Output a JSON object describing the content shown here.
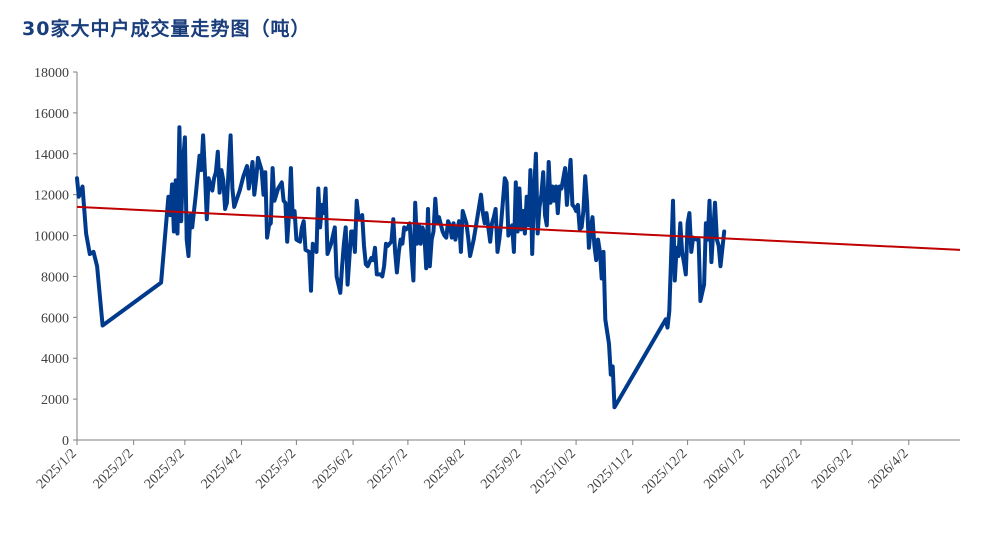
{
  "chart_data": {
    "type": "line",
    "title": "30家大中户成交量走势图（吨）",
    "xlabel": "",
    "ylabel": "",
    "ylim": [
      0,
      18000
    ],
    "yticks": [
      0,
      2000,
      4000,
      6000,
      8000,
      10000,
      12000,
      14000,
      16000,
      18000
    ],
    "yticklabels": [
      "0",
      "2000",
      "4000",
      "6000",
      "8000",
      "10000",
      "12000",
      "14000",
      "16000",
      "18000"
    ],
    "xlim": [
      "2025-01-02",
      "2026-04-30"
    ],
    "xticks": [
      "2025-01-02",
      "2025-02-02",
      "2025-03-02",
      "2025-04-02",
      "2025-05-02",
      "2025-06-02",
      "2025-07-02",
      "2025-08-02",
      "2025-09-02",
      "2025-10-02",
      "2025-11-02",
      "2025-12-02",
      "2026-01-02",
      "2026-02-02",
      "2026-03-02",
      "2026-04-02"
    ],
    "xticklabels": [
      "2025/1/2",
      "2025/2/2",
      "2025/3/2",
      "2025/4/2",
      "2025/5/2",
      "2025/6/2",
      "2025/7/2",
      "2025/8/2",
      "2025/9/2",
      "2025/10/2",
      "2025/11/2",
      "2025/12/2",
      "2026/1/2",
      "2026/2/2",
      "2026/3/2",
      "2026/4/2"
    ],
    "grid": false,
    "legend": "none",
    "series": [
      {
        "color": "#003a8c",
        "points": [
          [
            "2025-01-02",
            12800
          ],
          [
            "2025-01-03",
            11900
          ],
          [
            "2025-01-05",
            12400
          ],
          [
            "2025-01-07",
            10100
          ],
          [
            "2025-01-09",
            9100
          ],
          [
            "2025-01-11",
            9200
          ],
          [
            "2025-01-13",
            8500
          ],
          [
            "2025-01-16",
            5600
          ],
          [
            "2025-02-17",
            7700
          ],
          [
            "2025-02-21",
            11900
          ],
          [
            "2025-02-22",
            11000
          ],
          [
            "2025-02-23",
            12500
          ],
          [
            "2025-02-24",
            10200
          ],
          [
            "2025-02-25",
            12700
          ],
          [
            "2025-02-26",
            10100
          ],
          [
            "2025-02-27",
            15300
          ],
          [
            "2025-02-28",
            10700
          ],
          [
            "2025-03-01",
            13600
          ],
          [
            "2025-03-02",
            14800
          ],
          [
            "2025-03-03",
            9800
          ],
          [
            "2025-03-04",
            9000
          ],
          [
            "2025-03-05",
            11000
          ],
          [
            "2025-03-06",
            10400
          ],
          [
            "2025-03-08",
            12000
          ],
          [
            "2025-03-10",
            13900
          ],
          [
            "2025-03-11",
            13200
          ],
          [
            "2025-03-12",
            14900
          ],
          [
            "2025-03-13",
            13000
          ],
          [
            "2025-03-14",
            10800
          ],
          [
            "2025-03-15",
            12800
          ],
          [
            "2025-03-17",
            12200
          ],
          [
            "2025-03-18",
            12800
          ],
          [
            "2025-03-19",
            13100
          ],
          [
            "2025-03-20",
            14100
          ],
          [
            "2025-03-21",
            12100
          ],
          [
            "2025-03-22",
            13200
          ],
          [
            "2025-03-23",
            12700
          ],
          [
            "2025-03-24",
            11300
          ],
          [
            "2025-03-25",
            11600
          ],
          [
            "2025-03-26",
            13300
          ],
          [
            "2025-03-27",
            14900
          ],
          [
            "2025-03-28",
            12300
          ],
          [
            "2025-03-29",
            11400
          ],
          [
            "2025-04-01",
            12200
          ],
          [
            "2025-04-03",
            12900
          ],
          [
            "2025-04-05",
            13400
          ],
          [
            "2025-04-06",
            12300
          ],
          [
            "2025-04-07",
            13000
          ],
          [
            "2025-04-08",
            13600
          ],
          [
            "2025-04-09",
            12000
          ],
          [
            "2025-04-10",
            12800
          ],
          [
            "2025-04-11",
            13800
          ],
          [
            "2025-04-13",
            13200
          ],
          [
            "2025-04-14",
            12000
          ],
          [
            "2025-04-15",
            13100
          ],
          [
            "2025-04-16",
            9900
          ],
          [
            "2025-04-17",
            10500
          ],
          [
            "2025-04-18",
            10600
          ],
          [
            "2025-04-19",
            13300
          ],
          [
            "2025-04-20",
            11700
          ],
          [
            "2025-04-22",
            12300
          ],
          [
            "2025-04-24",
            12600
          ],
          [
            "2025-04-25",
            11700
          ],
          [
            "2025-04-26",
            11600
          ],
          [
            "2025-04-27",
            9700
          ],
          [
            "2025-04-28",
            11100
          ],
          [
            "2025-04-29",
            13300
          ],
          [
            "2025-04-30",
            10900
          ],
          [
            "2025-05-01",
            11200
          ],
          [
            "2025-05-02",
            9800
          ],
          [
            "2025-05-04",
            9700
          ],
          [
            "2025-05-05",
            10400
          ],
          [
            "2025-05-06",
            10700
          ],
          [
            "2025-05-07",
            9300
          ],
          [
            "2025-05-09",
            9200
          ],
          [
            "2025-05-10",
            7300
          ],
          [
            "2025-05-11",
            9600
          ],
          [
            "2025-05-13",
            9200
          ],
          [
            "2025-05-14",
            12300
          ],
          [
            "2025-05-15",
            10400
          ],
          [
            "2025-05-16",
            11500
          ],
          [
            "2025-05-17",
            11100
          ],
          [
            "2025-05-18",
            12300
          ],
          [
            "2025-05-19",
            9100
          ],
          [
            "2025-05-21",
            9600
          ],
          [
            "2025-05-23",
            10400
          ],
          [
            "2025-05-24",
            8000
          ],
          [
            "2025-05-26",
            7200
          ],
          [
            "2025-05-27",
            8500
          ],
          [
            "2025-05-28",
            9600
          ],
          [
            "2025-05-29",
            10400
          ],
          [
            "2025-05-30",
            7600
          ],
          [
            "2025-06-01",
            10200
          ],
          [
            "2025-06-02",
            10200
          ],
          [
            "2025-06-03",
            9200
          ],
          [
            "2025-06-04",
            11700
          ],
          [
            "2025-06-05",
            10900
          ],
          [
            "2025-06-06",
            10800
          ],
          [
            "2025-06-07",
            11000
          ],
          [
            "2025-06-08",
            9500
          ],
          [
            "2025-06-09",
            8600
          ],
          [
            "2025-06-10",
            8500
          ],
          [
            "2025-06-11",
            8700
          ],
          [
            "2025-06-12",
            8900
          ],
          [
            "2025-06-13",
            8800
          ],
          [
            "2025-06-14",
            9400
          ],
          [
            "2025-06-15",
            8100
          ],
          [
            "2025-06-17",
            8100
          ],
          [
            "2025-06-18",
            8000
          ],
          [
            "2025-06-19",
            8500
          ],
          [
            "2025-06-20",
            9600
          ],
          [
            "2025-06-21",
            9500
          ],
          [
            "2025-06-22",
            9600
          ],
          [
            "2025-06-23",
            9700
          ],
          [
            "2025-06-24",
            10800
          ],
          [
            "2025-06-25",
            9200
          ],
          [
            "2025-06-26",
            8200
          ],
          [
            "2025-06-27",
            9200
          ],
          [
            "2025-06-28",
            9800
          ],
          [
            "2025-06-29",
            9600
          ],
          [
            "2025-06-30",
            10400
          ],
          [
            "2025-07-01",
            10300
          ],
          [
            "2025-07-02",
            10400
          ],
          [
            "2025-07-03",
            10600
          ],
          [
            "2025-07-04",
            9000
          ],
          [
            "2025-07-05",
            7800
          ],
          [
            "2025-07-06",
            11600
          ],
          [
            "2025-07-07",
            9600
          ],
          [
            "2025-07-08",
            10500
          ],
          [
            "2025-07-09",
            9600
          ],
          [
            "2025-07-10",
            10400
          ],
          [
            "2025-07-11",
            10100
          ],
          [
            "2025-07-12",
            8400
          ],
          [
            "2025-07-13",
            11300
          ],
          [
            "2025-07-14",
            8500
          ],
          [
            "2025-07-15",
            9800
          ],
          [
            "2025-07-16",
            10200
          ],
          [
            "2025-07-17",
            11800
          ],
          [
            "2025-07-18",
            10600
          ],
          [
            "2025-07-19",
            10900
          ],
          [
            "2025-07-21",
            10200
          ],
          [
            "2025-07-22",
            10000
          ],
          [
            "2025-07-23",
            9900
          ],
          [
            "2025-07-24",
            10700
          ],
          [
            "2025-07-25",
            10500
          ],
          [
            "2025-07-26",
            9900
          ],
          [
            "2025-07-27",
            10600
          ],
          [
            "2025-07-28",
            9800
          ],
          [
            "2025-07-29",
            10300
          ],
          [
            "2025-07-30",
            10700
          ],
          [
            "2025-07-31",
            9200
          ],
          [
            "2025-08-01",
            11200
          ],
          [
            "2025-08-03",
            10600
          ],
          [
            "2025-08-04",
            9900
          ],
          [
            "2025-08-05",
            9000
          ],
          [
            "2025-08-06",
            9400
          ],
          [
            "2025-08-07",
            9800
          ],
          [
            "2025-08-09",
            10900
          ],
          [
            "2025-08-11",
            12000
          ],
          [
            "2025-08-12",
            11100
          ],
          [
            "2025-08-13",
            10600
          ],
          [
            "2025-08-14",
            11100
          ],
          [
            "2025-08-15",
            10400
          ],
          [
            "2025-08-16",
            9700
          ],
          [
            "2025-08-17",
            10600
          ],
          [
            "2025-08-18",
            10900
          ],
          [
            "2025-08-19",
            11300
          ],
          [
            "2025-08-20",
            9200
          ],
          [
            "2025-08-21",
            9800
          ],
          [
            "2025-08-22",
            10600
          ],
          [
            "2025-08-24",
            12800
          ],
          [
            "2025-08-25",
            12600
          ],
          [
            "2025-08-26",
            10000
          ],
          [
            "2025-08-27",
            10300
          ],
          [
            "2025-08-28",
            10500
          ],
          [
            "2025-08-29",
            9200
          ],
          [
            "2025-08-30",
            12600
          ],
          [
            "2025-08-31",
            10200
          ],
          [
            "2025-09-01",
            12300
          ],
          [
            "2025-09-02",
            10300
          ],
          [
            "2025-09-03",
            11200
          ],
          [
            "2025-09-04",
            10100
          ],
          [
            "2025-09-05",
            11900
          ],
          [
            "2025-09-06",
            10500
          ],
          [
            "2025-09-07",
            13200
          ],
          [
            "2025-09-08",
            9100
          ],
          [
            "2025-09-09",
            12100
          ],
          [
            "2025-09-10",
            14000
          ],
          [
            "2025-09-11",
            10100
          ],
          [
            "2025-09-12",
            11400
          ],
          [
            "2025-09-13",
            12000
          ],
          [
            "2025-09-14",
            13100
          ],
          [
            "2025-09-15",
            11000
          ],
          [
            "2025-09-16",
            10500
          ],
          [
            "2025-09-17",
            13600
          ],
          [
            "2025-09-18",
            11600
          ],
          [
            "2025-09-19",
            12400
          ],
          [
            "2025-09-20",
            11700
          ],
          [
            "2025-09-21",
            12400
          ],
          [
            "2025-09-22",
            11100
          ],
          [
            "2025-09-23",
            12400
          ],
          [
            "2025-09-24",
            12300
          ],
          [
            "2025-09-25",
            12800
          ],
          [
            "2025-09-26",
            13300
          ],
          [
            "2025-09-27",
            11500
          ],
          [
            "2025-09-28",
            12700
          ],
          [
            "2025-09-29",
            13700
          ],
          [
            "2025-09-30",
            11500
          ],
          [
            "2025-10-01",
            11400
          ],
          [
            "2025-10-02",
            11200
          ],
          [
            "2025-10-03",
            11500
          ],
          [
            "2025-10-04",
            10300
          ],
          [
            "2025-10-05",
            10400
          ],
          [
            "2025-10-06",
            11200
          ],
          [
            "2025-10-07",
            12900
          ],
          [
            "2025-10-08",
            11600
          ],
          [
            "2025-10-09",
            9400
          ],
          [
            "2025-10-10",
            10300
          ],
          [
            "2025-10-11",
            10900
          ],
          [
            "2025-10-12",
            9500
          ],
          [
            "2025-10-13",
            8800
          ],
          [
            "2025-10-14",
            9800
          ],
          [
            "2025-10-15",
            9200
          ],
          [
            "2025-10-16",
            7900
          ],
          [
            "2025-10-17",
            9200
          ],
          [
            "2025-10-18",
            5900
          ],
          [
            "2025-10-20",
            4700
          ],
          [
            "2025-10-21",
            3200
          ],
          [
            "2025-10-22",
            3600
          ],
          [
            "2025-10-23",
            1600
          ],
          [
            "2025-11-20",
            5900
          ],
          [
            "2025-11-21",
            5500
          ],
          [
            "2025-11-22",
            6300
          ],
          [
            "2025-11-24",
            11700
          ],
          [
            "2025-11-25",
            7800
          ],
          [
            "2025-11-26",
            9400
          ],
          [
            "2025-11-27",
            9000
          ],
          [
            "2025-11-28",
            10600
          ],
          [
            "2025-11-29",
            9200
          ],
          [
            "2025-11-30",
            8700
          ],
          [
            "2025-12-01",
            8100
          ],
          [
            "2025-12-02",
            10600
          ],
          [
            "2025-12-03",
            11100
          ],
          [
            "2025-12-04",
            9200
          ],
          [
            "2025-12-05",
            9900
          ],
          [
            "2025-12-07",
            9800
          ],
          [
            "2025-12-08",
            9800
          ],
          [
            "2025-12-09",
            6800
          ],
          [
            "2025-12-10",
            7200
          ],
          [
            "2025-12-11",
            7600
          ],
          [
            "2025-12-12",
            10600
          ],
          [
            "2025-12-13",
            9800
          ],
          [
            "2025-12-14",
            11700
          ],
          [
            "2025-12-15",
            8700
          ],
          [
            "2025-12-16",
            10200
          ],
          [
            "2025-12-17",
            11600
          ],
          [
            "2025-12-18",
            9800
          ],
          [
            "2025-12-19",
            9500
          ],
          [
            "2025-12-20",
            8500
          ],
          [
            "2025-12-22",
            10200
          ]
        ]
      }
    ],
    "trendline": {
      "color": "#c00000",
      "start": [
        "2025-01-02",
        11400
      ],
      "end": [
        "2026-04-30",
        9300
      ]
    }
  }
}
